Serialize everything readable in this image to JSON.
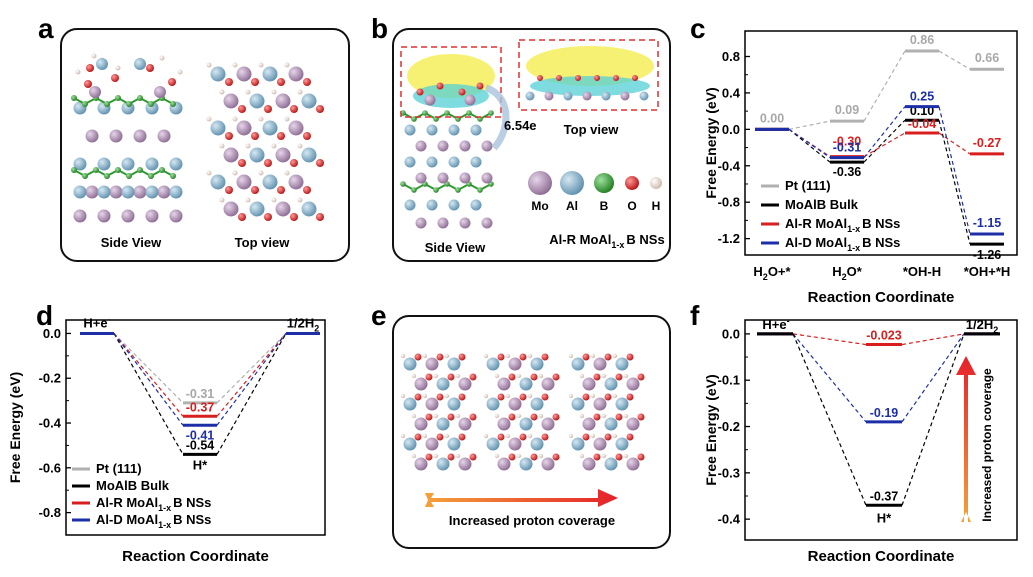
{
  "panels": {
    "a": {
      "letter": "a",
      "side_label": "Side View",
      "top_label": "Top view"
    },
    "b": {
      "letter": "b",
      "charge": "6.54e",
      "top_label": "Top view",
      "side_label": "Side View",
      "legend": [
        "Mo",
        "Al",
        "B",
        "O",
        "H"
      ],
      "legend_colors": [
        "#a07fa6",
        "#7aa6c2",
        "#2e9a2e",
        "#d42020",
        "#ecd9cf"
      ],
      "title": "Al-R MoAl",
      "title_sub": "1-x",
      "title_tail": "B NSs"
    },
    "c": {
      "letter": "c"
    },
    "d": {
      "letter": "d"
    },
    "e": {
      "letter": "e",
      "arrow_label": "Increased proton coverage"
    },
    "f": {
      "letter": "f"
    }
  },
  "chart_data": [
    {
      "panel": "c",
      "type": "line",
      "xlabel": "Reaction Coordinate",
      "ylabel": "Free Energy (eV)",
      "categories": [
        "H₂O+*",
        "H₂O*",
        "*OH-H",
        "*OH+*H"
      ],
      "category_labels": [
        [
          "H",
          "2",
          "O+*"
        ],
        [
          "H",
          "2",
          "O*"
        ],
        [
          "*OH-H"
        ],
        [
          "*OH+*H"
        ]
      ],
      "yticks": [
        "0.8",
        "0.4",
        "0.0",
        "-0.4",
        "-0.8",
        "-1.2"
      ],
      "ylim": [
        -1.38,
        1.08
      ],
      "series": [
        {
          "name": "Pt (111)",
          "name_sub": "",
          "name_tail": "",
          "color": "#b0b0b0",
          "values": [
            0.0,
            0.09,
            0.86,
            0.66
          ],
          "labels": [
            "0.00",
            "0.09",
            "0.86",
            "0.66"
          ]
        },
        {
          "name": "MoAlB Bulk",
          "name_sub": "",
          "name_tail": "",
          "color": "#000000",
          "values": [
            0.0,
            -0.36,
            0.1,
            -1.26
          ],
          "labels": [
            "",
            "-0.36",
            "0.10",
            "-1.26"
          ]
        },
        {
          "name": "Al-R MoAl",
          "name_sub": "1-x",
          "name_tail": "B NSs",
          "color": "#d81e1e",
          "values": [
            0.0,
            -0.3,
            -0.04,
            -0.27
          ],
          "labels": [
            "",
            "-0.30",
            "-0.04",
            "-0.27"
          ]
        },
        {
          "name": "Al-D MoAl",
          "name_sub": "1-x",
          "name_tail": "B NSs",
          "color": "#1c2fa8",
          "values": [
            0.0,
            -0.31,
            0.25,
            -1.15
          ],
          "labels": [
            "",
            "-0.31",
            "0.25",
            "-1.15"
          ]
        }
      ]
    },
    {
      "panel": "d",
      "type": "line",
      "xlabel": "Reaction Coordinate",
      "ylabel": "Free Energy (eV)",
      "categories": [
        "H+e-",
        "H*",
        "1/2H₂"
      ],
      "category_labels": [
        [
          "H+e",
          "",
          "-"
        ],
        [
          "H*"
        ],
        [
          "1/2H",
          "2",
          ""
        ]
      ],
      "yticks": [
        "0.0",
        "-0.2",
        "-0.4",
        "-0.6",
        "-0.8"
      ],
      "ylim": [
        -0.9,
        0.06
      ],
      "series": [
        {
          "name": "Pt (111)",
          "name_sub": "",
          "name_tail": "",
          "color": "#b0b0b0",
          "values": [
            0.0,
            -0.31,
            0.0
          ],
          "labels": [
            "",
            "-0.31",
            ""
          ]
        },
        {
          "name": "MoAlB Bulk",
          "name_sub": "",
          "name_tail": "",
          "color": "#000000",
          "values": [
            0.0,
            -0.54,
            0.0
          ],
          "labels": [
            "",
            "-0.54",
            ""
          ]
        },
        {
          "name": "Al-R MoAl",
          "name_sub": "1-x",
          "name_tail": "B NSs",
          "color": "#d81e1e",
          "values": [
            0.0,
            -0.37,
            0.0
          ],
          "labels": [
            "",
            "-0.37",
            ""
          ]
        },
        {
          "name": "Al-D MoAl",
          "name_sub": "1-x",
          "name_tail": "B NSs",
          "color": "#1c2fa8",
          "values": [
            0.0,
            -0.41,
            0.0
          ],
          "labels": [
            "",
            "-0.41",
            ""
          ]
        }
      ]
    },
    {
      "panel": "f",
      "type": "line",
      "xlabel": "Reaction Coordinate",
      "ylabel": "Free Energy (eV)",
      "categories": [
        "H+e-",
        "H*",
        "1/2H₂"
      ],
      "category_labels": [
        [
          "H+e",
          "",
          "-"
        ],
        [
          "H*"
        ],
        [
          "1/2H",
          "2",
          ""
        ]
      ],
      "yticks": [
        "0.0",
        "-0.1",
        "-0.2",
        "-0.3",
        "-0.4"
      ],
      "ylim": [
        -0.445,
        0.03
      ],
      "arrow_label": "Increased proton coverage",
      "series": [
        {
          "name": "",
          "color": "#d81e1e",
          "values": [
            0.0,
            -0.023,
            0.0
          ],
          "labels": [
            "",
            "-0.023",
            ""
          ]
        },
        {
          "name": "",
          "color": "#1c2fa8",
          "values": [
            0.0,
            -0.19,
            0.0
          ],
          "labels": [
            "",
            "-0.19",
            ""
          ]
        },
        {
          "name": "",
          "color": "#000000",
          "values": [
            0.0,
            -0.37,
            0.0
          ],
          "labels": [
            "",
            "-0.37",
            ""
          ]
        }
      ]
    }
  ]
}
